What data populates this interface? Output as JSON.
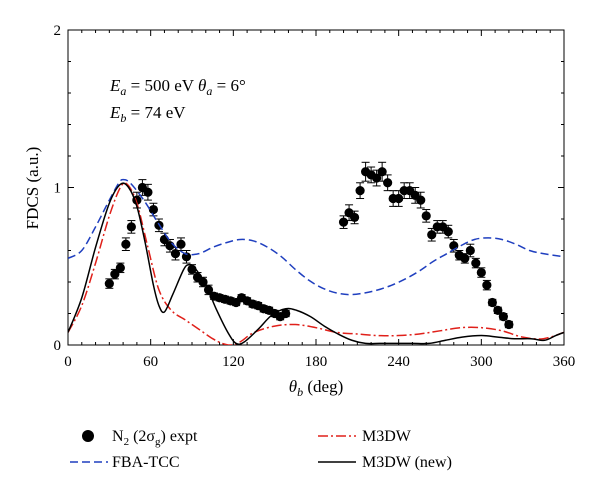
{
  "chart_data": {
    "type": "line",
    "ylabel": "FDCS (a.u.)",
    "xlabel_theta": "θ",
    "xlabel_sub": "b",
    "xlabel_unit": " (deg)",
    "xlim": [
      0,
      360
    ],
    "ylim": [
      0,
      2
    ],
    "xticks": [
      "0",
      "60",
      "120",
      "180",
      "240",
      "300",
      "360"
    ],
    "yticks": [
      "0",
      "1",
      "2"
    ],
    "annotations": {
      "line1": {
        "E": "E",
        "Esub": "a",
        "mid": " = 500 eV ",
        "theta": "θ",
        "thsub": "a",
        "end": " = 6°"
      },
      "line2": {
        "E": "E",
        "Esub": "b",
        "end": " = 74 eV"
      }
    },
    "legend": {
      "expt": {
        "pre": "N",
        "sub1": "2",
        "mid": " (2σ",
        "sub2": "g",
        "end": ") expt"
      },
      "fba": "FBA-TCC",
      "m3dw": "M3DW",
      "m3dw_new": "M3DW (new)"
    },
    "series": [
      {
        "name": "N2 (2σg) expt",
        "kind": "points",
        "color": "#000000",
        "points": [
          [
            30,
            0.39,
            0.03
          ],
          [
            34,
            0.45,
            0.03
          ],
          [
            38,
            0.49,
            0.03
          ],
          [
            42,
            0.64,
            0.04
          ],
          [
            46,
            0.75,
            0.04
          ],
          [
            50,
            0.92,
            0.05
          ],
          [
            54,
            1.0,
            0.05
          ],
          [
            58,
            0.97,
            0.05
          ],
          [
            62,
            0.86,
            0.04
          ],
          [
            66,
            0.76,
            0.04
          ],
          [
            70,
            0.67,
            0.04
          ],
          [
            74,
            0.63,
            0.04
          ],
          [
            78,
            0.58,
            0.04
          ],
          [
            82,
            0.64,
            0.04
          ],
          [
            86,
            0.56,
            0.04
          ],
          [
            90,
            0.48,
            0.03
          ],
          [
            94,
            0.43,
            0.03
          ],
          [
            98,
            0.4,
            0.03
          ],
          [
            102,
            0.35,
            0.03
          ],
          [
            106,
            0.31,
            0.02
          ],
          [
            110,
            0.3,
            0.02
          ],
          [
            114,
            0.29,
            0.02
          ],
          [
            118,
            0.28,
            0.02
          ],
          [
            122,
            0.27,
            0.02
          ],
          [
            126,
            0.3,
            0.02
          ],
          [
            130,
            0.28,
            0.02
          ],
          [
            134,
            0.26,
            0.02
          ],
          [
            138,
            0.25,
            0.02
          ],
          [
            142,
            0.23,
            0.02
          ],
          [
            146,
            0.22,
            0.02
          ],
          [
            150,
            0.2,
            0.02
          ],
          [
            154,
            0.18,
            0.02
          ],
          [
            158,
            0.2,
            0.02
          ],
          [
            200,
            0.78,
            0.04
          ],
          [
            204,
            0.84,
            0.05
          ],
          [
            208,
            0.81,
            0.04
          ],
          [
            212,
            0.98,
            0.05
          ],
          [
            216,
            1.1,
            0.06
          ],
          [
            220,
            1.08,
            0.05
          ],
          [
            224,
            1.06,
            0.05
          ],
          [
            228,
            1.1,
            0.06
          ],
          [
            232,
            1.03,
            0.05
          ],
          [
            236,
            0.93,
            0.05
          ],
          [
            240,
            0.93,
            0.05
          ],
          [
            244,
            0.98,
            0.05
          ],
          [
            248,
            0.98,
            0.05
          ],
          [
            252,
            0.95,
            0.05
          ],
          [
            256,
            0.92,
            0.05
          ],
          [
            260,
            0.82,
            0.04
          ],
          [
            264,
            0.7,
            0.04
          ],
          [
            268,
            0.75,
            0.04
          ],
          [
            272,
            0.75,
            0.04
          ],
          [
            276,
            0.72,
            0.04
          ],
          [
            280,
            0.63,
            0.04
          ],
          [
            284,
            0.57,
            0.03
          ],
          [
            288,
            0.55,
            0.03
          ],
          [
            292,
            0.6,
            0.04
          ],
          [
            296,
            0.52,
            0.03
          ],
          [
            300,
            0.46,
            0.03
          ],
          [
            304,
            0.38,
            0.03
          ],
          [
            308,
            0.27,
            0.02
          ],
          [
            312,
            0.22,
            0.02
          ],
          [
            316,
            0.18,
            0.02
          ],
          [
            320,
            0.13,
            0.02
          ]
        ]
      },
      {
        "name": "FBA-TCC",
        "kind": "line",
        "color": "#1f3fbf",
        "dash": "8,4",
        "points": [
          [
            0,
            0.55
          ],
          [
            10,
            0.6
          ],
          [
            20,
            0.75
          ],
          [
            30,
            0.92
          ],
          [
            37,
            1.03
          ],
          [
            40,
            1.05
          ],
          [
            45,
            1.03
          ],
          [
            55,
            0.92
          ],
          [
            65,
            0.78
          ],
          [
            75,
            0.65
          ],
          [
            85,
            0.58
          ],
          [
            95,
            0.58
          ],
          [
            105,
            0.62
          ],
          [
            115,
            0.65
          ],
          [
            125,
            0.67
          ],
          [
            135,
            0.66
          ],
          [
            145,
            0.62
          ],
          [
            155,
            0.56
          ],
          [
            165,
            0.48
          ],
          [
            175,
            0.41
          ],
          [
            185,
            0.36
          ],
          [
            195,
            0.33
          ],
          [
            205,
            0.32
          ],
          [
            215,
            0.33
          ],
          [
            225,
            0.35
          ],
          [
            235,
            0.38
          ],
          [
            245,
            0.42
          ],
          [
            255,
            0.47
          ],
          [
            265,
            0.53
          ],
          [
            275,
            0.58
          ],
          [
            285,
            0.63
          ],
          [
            295,
            0.67
          ],
          [
            305,
            0.68
          ],
          [
            315,
            0.67
          ],
          [
            325,
            0.64
          ],
          [
            335,
            0.6
          ],
          [
            345,
            0.58
          ],
          [
            360,
            0.56
          ]
        ]
      },
      {
        "name": "M3DW",
        "kind": "line",
        "color": "#e0201a",
        "dash": "10,3,2,3",
        "points": [
          [
            0,
            0.08
          ],
          [
            10,
            0.25
          ],
          [
            20,
            0.52
          ],
          [
            30,
            0.82
          ],
          [
            38,
            1.0
          ],
          [
            43,
            1.02
          ],
          [
            50,
            0.9
          ],
          [
            58,
            0.62
          ],
          [
            66,
            0.35
          ],
          [
            75,
            0.22
          ],
          [
            85,
            0.16
          ],
          [
            95,
            0.1
          ],
          [
            105,
            0.04
          ],
          [
            112,
            0.01
          ],
          [
            118,
            0.0
          ],
          [
            125,
            0.02
          ],
          [
            135,
            0.08
          ],
          [
            150,
            0.12
          ],
          [
            165,
            0.13
          ],
          [
            180,
            0.11
          ],
          [
            195,
            0.08
          ],
          [
            210,
            0.07
          ],
          [
            225,
            0.06
          ],
          [
            240,
            0.06
          ],
          [
            255,
            0.07
          ],
          [
            270,
            0.09
          ],
          [
            285,
            0.11
          ],
          [
            300,
            0.11
          ],
          [
            315,
            0.09
          ],
          [
            330,
            0.05
          ],
          [
            345,
            0.04
          ],
          [
            360,
            0.08
          ]
        ]
      },
      {
        "name": "M3DW (new)",
        "kind": "line",
        "color": "#000000",
        "dash": "",
        "points": [
          [
            0,
            0.08
          ],
          [
            10,
            0.3
          ],
          [
            20,
            0.62
          ],
          [
            30,
            0.9
          ],
          [
            38,
            1.02
          ],
          [
            44,
            1.0
          ],
          [
            50,
            0.88
          ],
          [
            56,
            0.65
          ],
          [
            62,
            0.38
          ],
          [
            66,
            0.25
          ],
          [
            70,
            0.21
          ],
          [
            76,
            0.32
          ],
          [
            84,
            0.48
          ],
          [
            88,
            0.51
          ],
          [
            92,
            0.49
          ],
          [
            100,
            0.38
          ],
          [
            108,
            0.22
          ],
          [
            116,
            0.08
          ],
          [
            122,
            0.01
          ],
          [
            128,
            0.02
          ],
          [
            138,
            0.1
          ],
          [
            148,
            0.19
          ],
          [
            158,
            0.23
          ],
          [
            166,
            0.22
          ],
          [
            176,
            0.18
          ],
          [
            186,
            0.12
          ],
          [
            196,
            0.07
          ],
          [
            206,
            0.03
          ],
          [
            216,
            0.01
          ],
          [
            226,
            0.01
          ],
          [
            236,
            0.01
          ],
          [
            250,
            0.01
          ],
          [
            262,
            0.01
          ],
          [
            274,
            0.03
          ],
          [
            286,
            0.05
          ],
          [
            300,
            0.06
          ],
          [
            312,
            0.05
          ],
          [
            324,
            0.04
          ],
          [
            336,
            0.04
          ],
          [
            346,
            0.03
          ],
          [
            354,
            0.06
          ],
          [
            360,
            0.08
          ]
        ]
      }
    ]
  }
}
